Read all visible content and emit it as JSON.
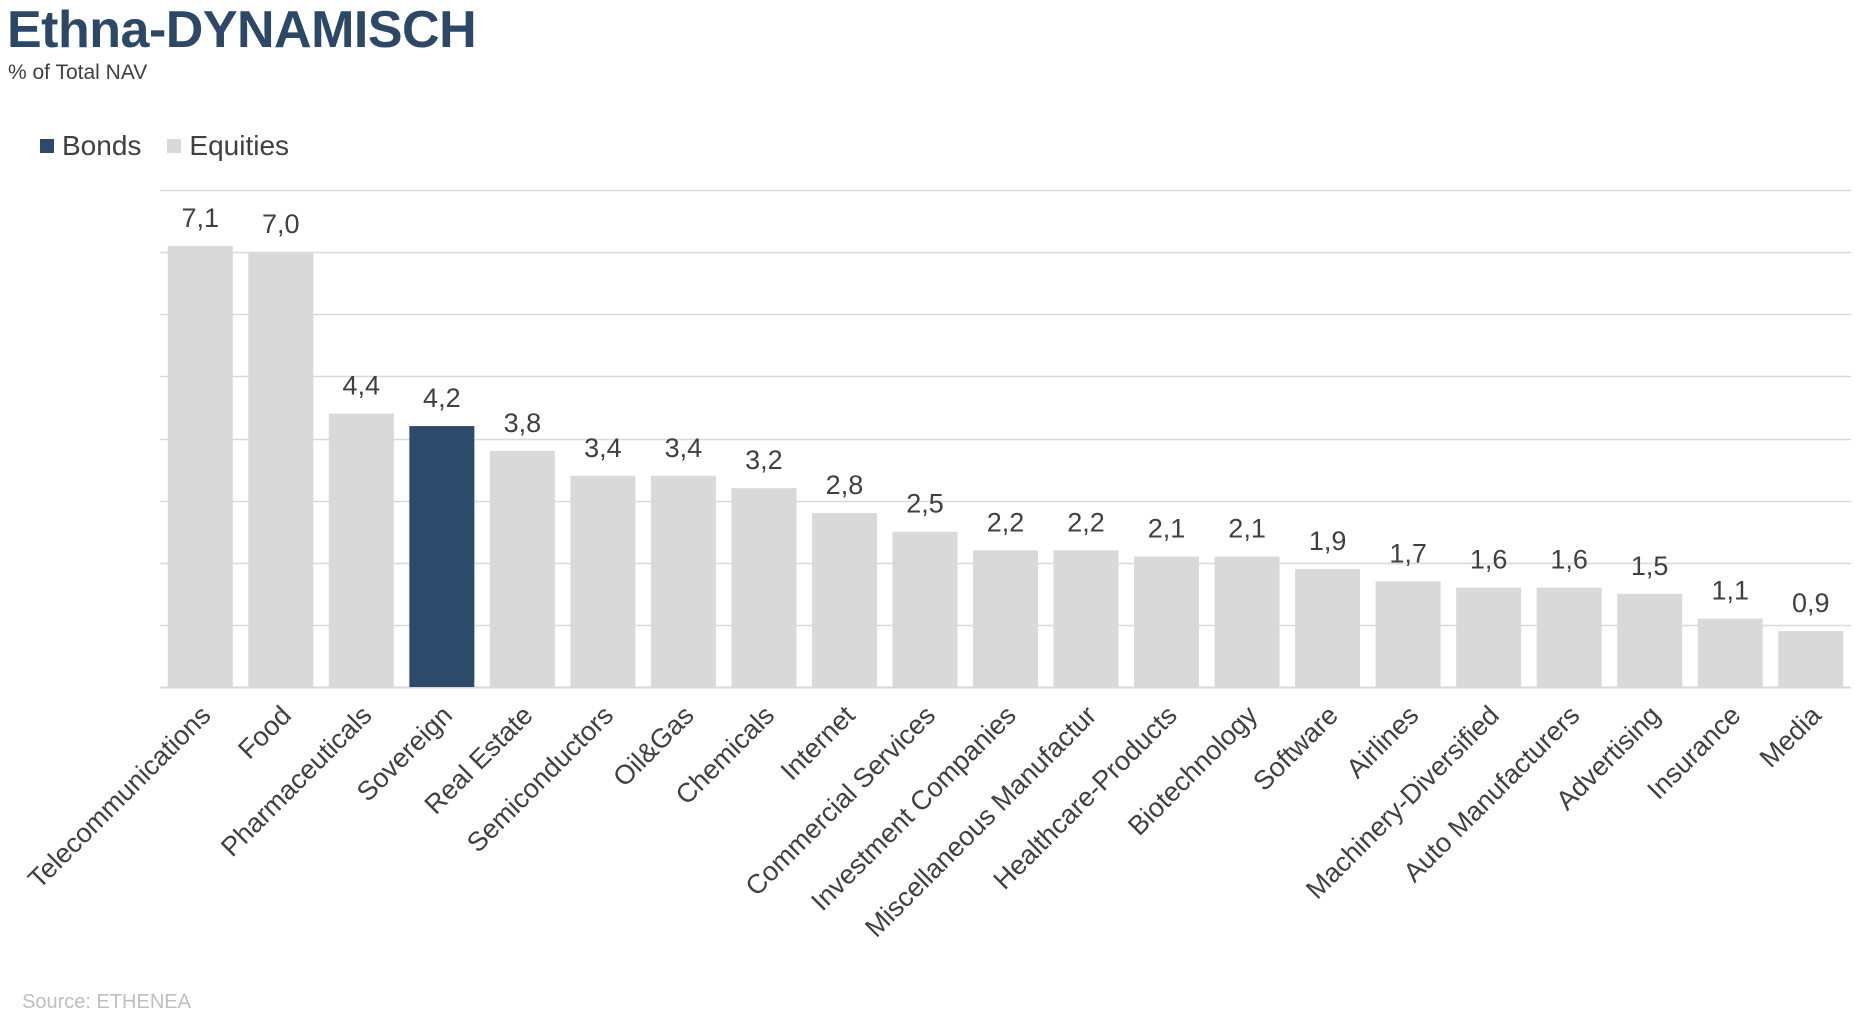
{
  "header": {
    "title": "Ethna-DYNAMISCH",
    "subtitle": "% of Total NAV"
  },
  "footer": {
    "source": "Source: ETHENEA"
  },
  "colors": {
    "bonds": "#2e4a6b",
    "equities": "#d9d9d9",
    "gridline": "#d9d9d9",
    "text": "#404040"
  },
  "chart_data": {
    "type": "bar",
    "title": "Ethna-DYNAMISCH",
    "subtitle": "% of Total NAV",
    "legend": {
      "placement": "top-left",
      "entries": [
        {
          "name": "Bonds",
          "color": "#2e4a6b"
        },
        {
          "name": "Equities",
          "color": "#d9d9d9"
        }
      ]
    },
    "categories": [
      "Telecommunications",
      "Food",
      "Pharmaceuticals",
      "Sovereign",
      "Real Estate",
      "Semiconductors",
      "Oil&Gas",
      "Chemicals",
      "Internet",
      "Commercial Services",
      "Investment Companies",
      "Miscellaneous Manufactur",
      "Healthcare-Products",
      "Biotechnology",
      "Software",
      "Airlines",
      "Machinery-Diversified",
      "Auto Manufacturers",
      "Advertising",
      "Insurance",
      "Media"
    ],
    "values": [
      7.1,
      7.0,
      4.4,
      4.2,
      3.8,
      3.4,
      3.4,
      3.2,
      2.8,
      2.5,
      2.2,
      2.2,
      2.1,
      2.1,
      1.9,
      1.7,
      1.6,
      1.6,
      1.5,
      1.1,
      0.9
    ],
    "value_labels": [
      "7,1",
      "7,0",
      "4,4",
      "4,2",
      "3,8",
      "3,4",
      "3,4",
      "3,2",
      "2,8",
      "2,5",
      "2,2",
      "2,2",
      "2,1",
      "2,1",
      "1,9",
      "1,7",
      "1,6",
      "1,6",
      "1,5",
      "1,1",
      "0,9"
    ],
    "series_membership": [
      "Equities",
      "Equities",
      "Equities",
      "Bonds",
      "Equities",
      "Equities",
      "Equities",
      "Equities",
      "Equities",
      "Equities",
      "Equities",
      "Equities",
      "Equities",
      "Equities",
      "Equities",
      "Equities",
      "Equities",
      "Equities",
      "Equities",
      "Equities",
      "Equities"
    ],
    "ylim": [
      0,
      8
    ],
    "grid": true,
    "y_axis_labels_shown": false
  }
}
